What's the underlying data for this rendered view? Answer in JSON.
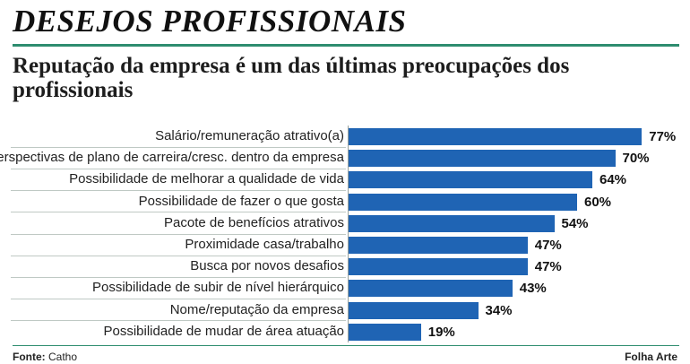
{
  "header": {
    "section_title": "DESEJOS PROFISSIONAIS",
    "headline": "Reputação da empresa é um das últimas preocupações dos profissionais"
  },
  "chart_data": {
    "type": "bar",
    "orientation": "horizontal",
    "categories": [
      "Salário/remuneração atrativo(a)",
      "Perspectivas de plano de carreira/cresc. dentro da empresa",
      "Possibilidade de melhorar a qualidade de vida",
      "Possibilidade de fazer o que gosta",
      "Pacote de benefícios atrativos",
      "Proximidade casa/trabalho",
      "Busca por novos desafios",
      "Possibilidade de subir de nível hierárquico",
      "Nome/reputação da empresa",
      "Possibilidade de mudar de área atuação"
    ],
    "values": [
      77,
      70,
      64,
      60,
      54,
      47,
      47,
      43,
      34,
      19
    ],
    "value_labels": [
      "77%",
      "70%",
      "64%",
      "60%",
      "54%",
      "47%",
      "47%",
      "43%",
      "34%",
      "19%"
    ],
    "unit": "%",
    "bar_color": "#1f64b4",
    "grid": false,
    "legend": "none"
  },
  "footer": {
    "source_label": "Fonte:",
    "source_value": "Catho",
    "credit": "Folha Arte"
  }
}
